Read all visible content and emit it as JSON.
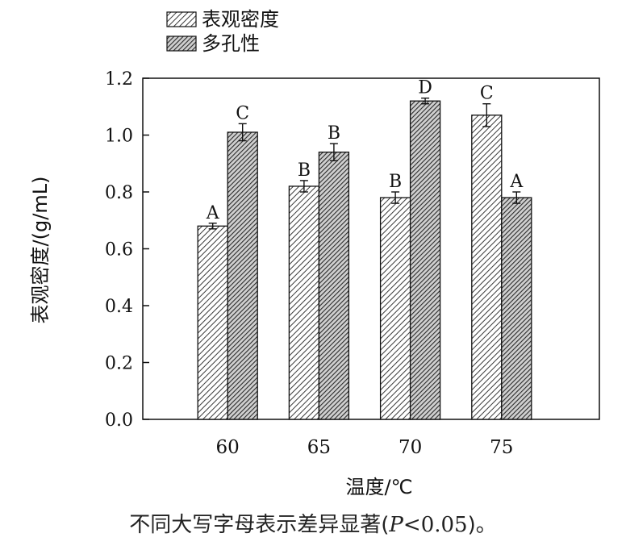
{
  "chart_data": {
    "type": "bar",
    "categories": [
      "60",
      "65",
      "70",
      "75"
    ],
    "series": [
      {
        "name": "表观密度",
        "values": [
          0.68,
          0.82,
          0.78,
          1.07
        ],
        "errors": [
          0.01,
          0.02,
          0.02,
          0.04
        ],
        "letters": [
          "A",
          "B",
          "B",
          "C"
        ],
        "pattern": "light-hatch"
      },
      {
        "name": "多孔性",
        "values": [
          1.01,
          0.94,
          1.12,
          0.78
        ],
        "errors": [
          0.03,
          0.03,
          0.01,
          0.02
        ],
        "letters": [
          "C",
          "B",
          "D",
          "A"
        ],
        "pattern": "dark-hatch"
      }
    ],
    "ylim": [
      0,
      1.2
    ],
    "yticks": [
      "0.0",
      "0.2",
      "0.4",
      "0.6",
      "0.8",
      "1.0",
      "1.2"
    ],
    "xlabel": "温度/℃",
    "ylabel": "表观密度/(g/mL)",
    "legend_position": "top-left",
    "grid": false
  },
  "caption": {
    "prefix": "不同大写字母表示差异显著(",
    "p": "P",
    "suffix_lt": "<",
    "suffix_num": "0.05",
    "suffix_end": ")。"
  }
}
